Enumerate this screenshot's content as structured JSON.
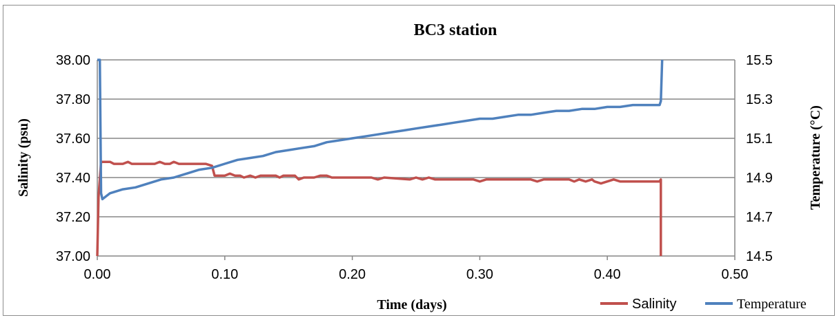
{
  "chart_data": {
    "type": "line",
    "title": "BC3 station",
    "xlabel": "Time (days)",
    "ylabel_left": "Salinity (psu)",
    "ylabel_right": "Temperature (°C)",
    "xlim": [
      0,
      0.5
    ],
    "ylim_left": [
      37.0,
      38.0
    ],
    "ylim_right": [
      14.5,
      15.5
    ],
    "x_ticks": [
      "0.00",
      "0.10",
      "0.20",
      "0.30",
      "0.40",
      "0.50"
    ],
    "y_left_ticks": [
      "37.00",
      "37.20",
      "37.40",
      "37.60",
      "37.80",
      "38.00"
    ],
    "y_right_ticks": [
      "14.5",
      "14.7",
      "14.9",
      "15.1",
      "15.3",
      "15.5"
    ],
    "grid": "horizontal",
    "legend_position": "bottom-right",
    "series": [
      {
        "name": "Salinity",
        "axis": "left",
        "color": "#c0504d",
        "points": [
          [
            0.0,
            37.0
          ],
          [
            0.001,
            37.3
          ],
          [
            0.003,
            37.48
          ],
          [
            0.01,
            37.48
          ],
          [
            0.013,
            37.47
          ],
          [
            0.02,
            37.47
          ],
          [
            0.024,
            37.48
          ],
          [
            0.027,
            37.47
          ],
          [
            0.045,
            37.47
          ],
          [
            0.049,
            37.48
          ],
          [
            0.053,
            37.47
          ],
          [
            0.057,
            37.47
          ],
          [
            0.06,
            37.48
          ],
          [
            0.064,
            37.47
          ],
          [
            0.085,
            37.47
          ],
          [
            0.09,
            37.46
          ],
          [
            0.092,
            37.41
          ],
          [
            0.1,
            37.41
          ],
          [
            0.104,
            37.42
          ],
          [
            0.108,
            37.41
          ],
          [
            0.112,
            37.41
          ],
          [
            0.115,
            37.4
          ],
          [
            0.12,
            37.41
          ],
          [
            0.124,
            37.4
          ],
          [
            0.128,
            37.41
          ],
          [
            0.14,
            37.41
          ],
          [
            0.143,
            37.4
          ],
          [
            0.146,
            37.41
          ],
          [
            0.155,
            37.41
          ],
          [
            0.158,
            37.39
          ],
          [
            0.162,
            37.4
          ],
          [
            0.17,
            37.4
          ],
          [
            0.175,
            37.41
          ],
          [
            0.18,
            37.41
          ],
          [
            0.184,
            37.4
          ],
          [
            0.2,
            37.4
          ],
          [
            0.215,
            37.4
          ],
          [
            0.22,
            37.39
          ],
          [
            0.225,
            37.4
          ],
          [
            0.245,
            37.39
          ],
          [
            0.25,
            37.4
          ],
          [
            0.255,
            37.39
          ],
          [
            0.26,
            37.4
          ],
          [
            0.265,
            37.39
          ],
          [
            0.295,
            37.39
          ],
          [
            0.3,
            37.38
          ],
          [
            0.305,
            37.39
          ],
          [
            0.34,
            37.39
          ],
          [
            0.345,
            37.38
          ],
          [
            0.35,
            37.39
          ],
          [
            0.37,
            37.39
          ],
          [
            0.374,
            37.38
          ],
          [
            0.378,
            37.39
          ],
          [
            0.383,
            37.38
          ],
          [
            0.388,
            37.39
          ],
          [
            0.39,
            37.38
          ],
          [
            0.395,
            37.37
          ],
          [
            0.4,
            37.38
          ],
          [
            0.405,
            37.39
          ],
          [
            0.41,
            37.38
          ],
          [
            0.441,
            37.38
          ],
          [
            0.442,
            37.39
          ],
          [
            0.442,
            37.0
          ]
        ]
      },
      {
        "name": "Temperature",
        "axis": "right",
        "color": "#4f81bd",
        "points": [
          [
            0.0,
            15.5
          ],
          [
            0.002,
            15.5
          ],
          [
            0.003,
            14.82
          ],
          [
            0.004,
            14.79
          ],
          [
            0.01,
            14.82
          ],
          [
            0.02,
            14.84
          ],
          [
            0.03,
            14.85
          ],
          [
            0.04,
            14.87
          ],
          [
            0.05,
            14.89
          ],
          [
            0.06,
            14.9
          ],
          [
            0.07,
            14.92
          ],
          [
            0.08,
            14.94
          ],
          [
            0.09,
            14.95
          ],
          [
            0.1,
            14.97
          ],
          [
            0.11,
            14.99
          ],
          [
            0.12,
            15.0
          ],
          [
            0.13,
            15.01
          ],
          [
            0.14,
            15.03
          ],
          [
            0.15,
            15.04
          ],
          [
            0.16,
            15.05
          ],
          [
            0.17,
            15.06
          ],
          [
            0.18,
            15.08
          ],
          [
            0.19,
            15.09
          ],
          [
            0.2,
            15.1
          ],
          [
            0.21,
            15.11
          ],
          [
            0.22,
            15.12
          ],
          [
            0.23,
            15.13
          ],
          [
            0.24,
            15.14
          ],
          [
            0.25,
            15.15
          ],
          [
            0.26,
            15.16
          ],
          [
            0.27,
            15.17
          ],
          [
            0.28,
            15.18
          ],
          [
            0.29,
            15.19
          ],
          [
            0.3,
            15.2
          ],
          [
            0.31,
            15.2
          ],
          [
            0.32,
            15.21
          ],
          [
            0.33,
            15.22
          ],
          [
            0.34,
            15.22
          ],
          [
            0.35,
            15.23
          ],
          [
            0.36,
            15.24
          ],
          [
            0.37,
            15.24
          ],
          [
            0.38,
            15.25
          ],
          [
            0.39,
            15.25
          ],
          [
            0.4,
            15.26
          ],
          [
            0.41,
            15.26
          ],
          [
            0.42,
            15.27
          ],
          [
            0.43,
            15.27
          ],
          [
            0.441,
            15.27
          ],
          [
            0.442,
            15.29
          ],
          [
            0.443,
            15.5
          ]
        ]
      }
    ]
  }
}
